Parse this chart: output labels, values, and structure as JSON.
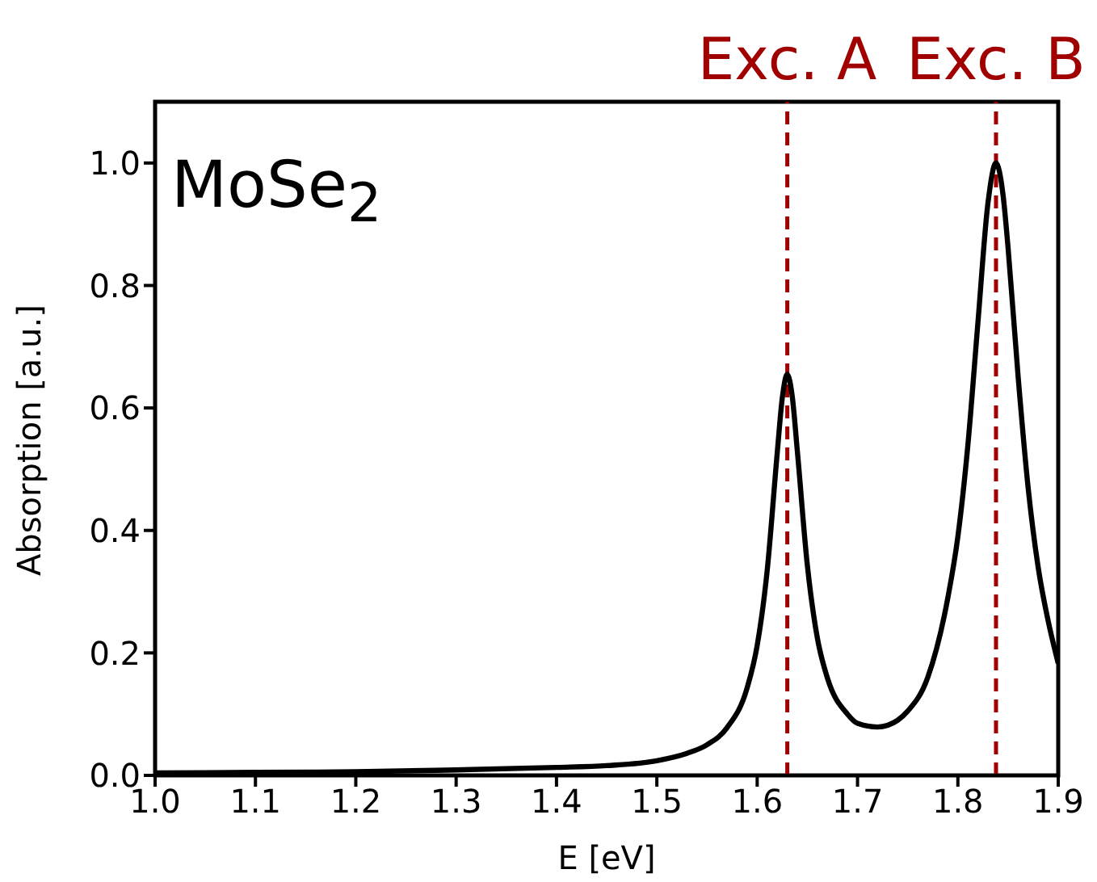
{
  "chart_data": {
    "type": "line",
    "xlabel": "E [eV]",
    "ylabel": "Absorption [a.u.]",
    "annotations": [
      "MoSe$_{2}$"
    ],
    "xlim": [
      1.0,
      1.9
    ],
    "xticks": [
      {
        "value": 1.0,
        "label": "1.0"
      },
      1.1,
      1.2,
      1.3,
      1.4,
      1.5,
      1.6,
      1.7,
      1.8,
      {
        "value": 1.9,
        "label": "1.9"
      }
    ],
    "ylim": [
      0,
      1.1
    ],
    "yticks": [
      {
        "value": 0,
        "label": "0.0"
      },
      0.2,
      0.4,
      0.6,
      0.8,
      {
        "value": 1.0,
        "label": "1.0"
      }
    ],
    "grid": false,
    "legend": false,
    "marker": "none",
    "line_style": "solid",
    "ref_lines": [
      {
        "axis": "x",
        "value": 1.63,
        "label": "Exc. A",
        "color": "#a00000",
        "line_style": "dashed"
      },
      {
        "axis": "x",
        "value": 1.838,
        "label": "Exc. B",
        "color": "#a00000",
        "line_style": "dashed"
      }
    ],
    "series": [
      {
        "color": "#000000",
        "x": [
          1.0,
          1.1,
          1.2,
          1.3,
          1.4,
          1.45,
          1.5,
          1.53,
          1.55,
          1.57,
          1.59,
          1.6,
          1.61,
          1.62,
          1.625,
          1.63,
          1.635,
          1.64,
          1.65,
          1.66,
          1.67,
          1.69,
          1.7,
          1.72,
          1.74,
          1.75,
          1.77,
          1.79,
          1.8,
          1.81,
          1.82,
          1.83,
          1.838,
          1.845,
          1.85,
          1.86,
          1.87,
          1.88,
          1.89,
          1.9
        ],
        "values": [
          0.004,
          0.005,
          0.006,
          0.009,
          0.013,
          0.016,
          0.024,
          0.036,
          0.05,
          0.078,
          0.143,
          0.212,
          0.335,
          0.527,
          0.616,
          0.655,
          0.618,
          0.53,
          0.343,
          0.224,
          0.159,
          0.1,
          0.085,
          0.079,
          0.09,
          0.105,
          0.16,
          0.29,
          0.39,
          0.54,
          0.74,
          0.935,
          1.0,
          0.948,
          0.862,
          0.652,
          0.47,
          0.34,
          0.252,
          0.183
        ]
      }
    ]
  }
}
